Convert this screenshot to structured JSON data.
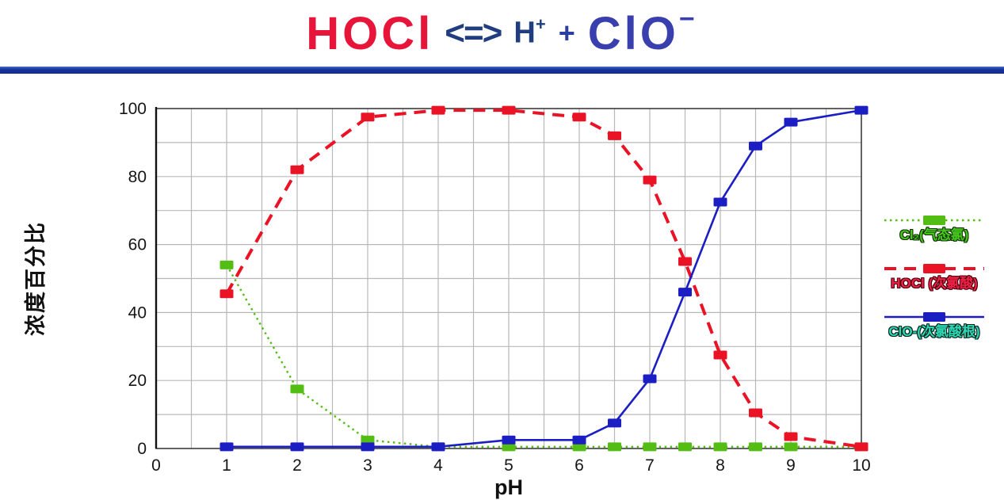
{
  "title": {
    "left": "HOCl",
    "arrow": "<=>",
    "h_base": "H",
    "h_sup": "+",
    "plus": "+",
    "right_base": "ClO",
    "right_sup": "−"
  },
  "divider_color": "#16339e",
  "chart_data": {
    "type": "line",
    "title": "HOCl <=> H+ + ClO-",
    "xlabel": "pH",
    "ylabel": "浓度百分比",
    "xlim": [
      0,
      10
    ],
    "ylim": [
      0,
      100
    ],
    "x_ticks": [
      0,
      1,
      2,
      3,
      4,
      5,
      6,
      7,
      8,
      9,
      10
    ],
    "y_ticks": [
      0,
      20,
      40,
      60,
      80,
      100
    ],
    "grid": {
      "x_step": 0.5,
      "y_step": 10,
      "color": "#b8b8b8",
      "on": true
    },
    "legend_position": "right",
    "x": [
      1,
      2,
      3,
      4,
      5,
      6,
      6.5,
      7,
      7.5,
      8,
      8.5,
      9,
      10
    ],
    "series": [
      {
        "name": "Cl₂(气态氯)",
        "color": "#54bd14",
        "line_style": "dotted",
        "label_color": "#46c91f",
        "label_outline": "#143300",
        "values": [
          54,
          17.5,
          2.5,
          0.5,
          0.5,
          0.5,
          0.5,
          0.5,
          0.5,
          0.5,
          0.5,
          0.5,
          0.5
        ]
      },
      {
        "name": "HOCl (次氯酸)",
        "color": "#ea1325",
        "line_style": "dashed",
        "label_color": "#f02147",
        "label_outline": "#4d000d",
        "values": [
          45.5,
          82,
          97.5,
          99.5,
          99.5,
          97.5,
          92,
          79,
          55,
          27.5,
          10.5,
          3.5,
          0.5
        ]
      },
      {
        "name": "ClO-(次氯酸根)",
        "color": "#1b1ec2",
        "line_style": "solid",
        "label_color": "#2fd8b5",
        "label_outline": "#06251c",
        "values": [
          0.5,
          0.5,
          0.5,
          0.5,
          2.5,
          2.5,
          7.5,
          20.5,
          46,
          72.5,
          89,
          96,
          99.5
        ]
      }
    ]
  }
}
